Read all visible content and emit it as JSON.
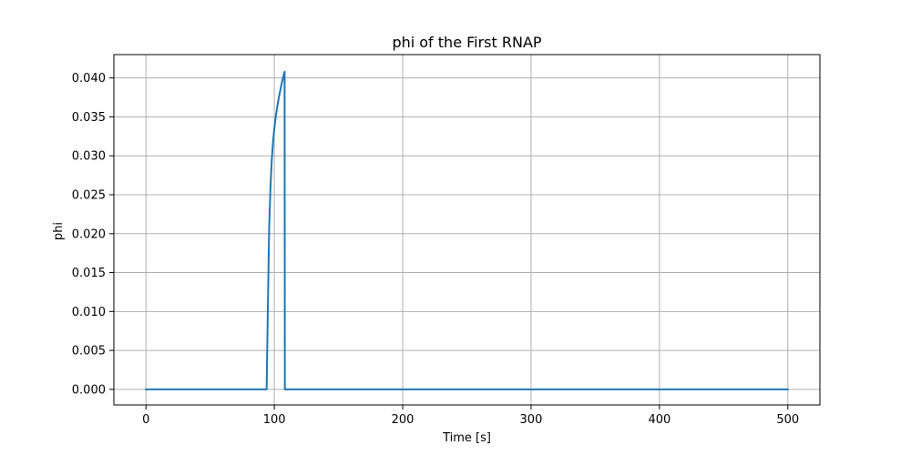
{
  "chart_data": {
    "type": "line",
    "title": "phi of the First RNAP",
    "xlabel": "Time [s]",
    "ylabel": "phi",
    "xlim": [
      -25,
      525
    ],
    "ylim": [
      -0.002,
      0.043
    ],
    "xticks": [
      0,
      100,
      200,
      300,
      400,
      500
    ],
    "yticks": [
      0.0,
      0.005,
      0.01,
      0.015,
      0.02,
      0.025,
      0.03,
      0.035,
      0.04
    ],
    "xtick_labels": [
      "0",
      "100",
      "200",
      "300",
      "400",
      "500"
    ],
    "ytick_labels": [
      "0.000",
      "0.005",
      "0.010",
      "0.015",
      "0.020",
      "0.025",
      "0.030",
      "0.035",
      "0.040"
    ],
    "grid": true,
    "series": [
      {
        "color": "#1f77b4",
        "points": [
          [
            0,
            0
          ],
          [
            94,
            0
          ],
          [
            95,
            0.011
          ],
          [
            96,
            0.021
          ],
          [
            97,
            0.026
          ],
          [
            98,
            0.0295
          ],
          [
            99,
            0.0318
          ],
          [
            100,
            0.0335
          ],
          [
            101,
            0.0349
          ],
          [
            102,
            0.036
          ],
          [
            103,
            0.037
          ],
          [
            104,
            0.0379
          ],
          [
            105,
            0.0387
          ],
          [
            106,
            0.0395
          ],
          [
            107,
            0.0402
          ],
          [
            108,
            0.0408
          ],
          [
            108.2,
            0
          ],
          [
            500,
            0
          ]
        ]
      }
    ]
  }
}
